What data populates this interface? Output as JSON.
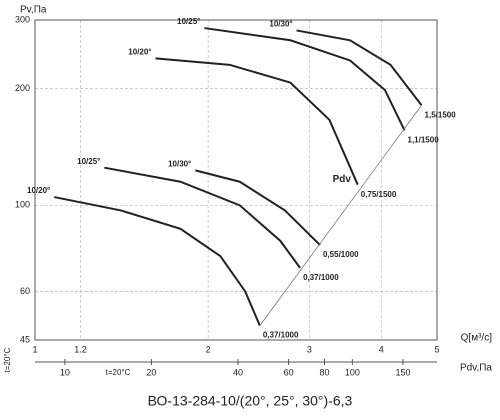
{
  "chart_data": {
    "type": "line",
    "title": "ВО-13-284-10/(20°, 25°, 30°)-6,3",
    "x_label": "Q[м³/c]",
    "y_label": "Pv,Па",
    "x2_label": "Pdv,Па",
    "line_label": "Pdv",
    "notes": [
      "t=20°C",
      "t=20°C"
    ],
    "log_x": true,
    "log_y": true,
    "grid": true,
    "xlim": [
      1,
      5
    ],
    "xticks": [
      1,
      1.2,
      2,
      3,
      4,
      5
    ],
    "ylim": [
      45,
      300
    ],
    "yticks": [
      45,
      60,
      100,
      200,
      300
    ],
    "x2lim": [
      7.87,
      197
    ],
    "x2ticks": [
      10,
      20,
      40,
      60,
      80,
      100,
      150
    ],
    "series": [
      {
        "name": "10/20°",
        "end_label": "0,37/1000",
        "color": "#222",
        "x": [
          1.08,
          1.41,
          1.79,
          2.1,
          2.32,
          2.46
        ],
        "values": [
          105,
          97,
          87,
          74,
          60,
          49
        ]
      },
      {
        "name": "10/25°",
        "end_label": "0,37/1000",
        "color": "#222",
        "x": [
          1.32,
          1.79,
          2.27,
          2.67,
          2.89
        ],
        "values": [
          125,
          115,
          100,
          81,
          69
        ]
      },
      {
        "name": "10/30°",
        "end_label": "0,55/1000",
        "color": "#222",
        "x": [
          1.9,
          2.27,
          2.72,
          3.13
        ],
        "values": [
          123,
          115,
          97,
          79
        ]
      },
      {
        "name": "10/20°",
        "end_label": "0,75/1500",
        "color": "#222",
        "x": [
          1.62,
          2.18,
          2.78,
          3.25,
          3.64
        ],
        "values": [
          239,
          230,
          207,
          166,
          113
        ]
      },
      {
        "name": "10/25°",
        "end_label": "1,1/1500",
        "color": "#222",
        "x": [
          1.97,
          2.78,
          3.53,
          4.06,
          4.39
        ],
        "values": [
          286,
          266,
          236,
          198,
          156
        ]
      },
      {
        "name": "10/30°",
        "end_label": "1,5/1500",
        "color": "#222",
        "x": [
          2.85,
          3.53,
          4.15,
          4.7
        ],
        "values": [
          282,
          266,
          230,
          181
        ]
      }
    ]
  }
}
